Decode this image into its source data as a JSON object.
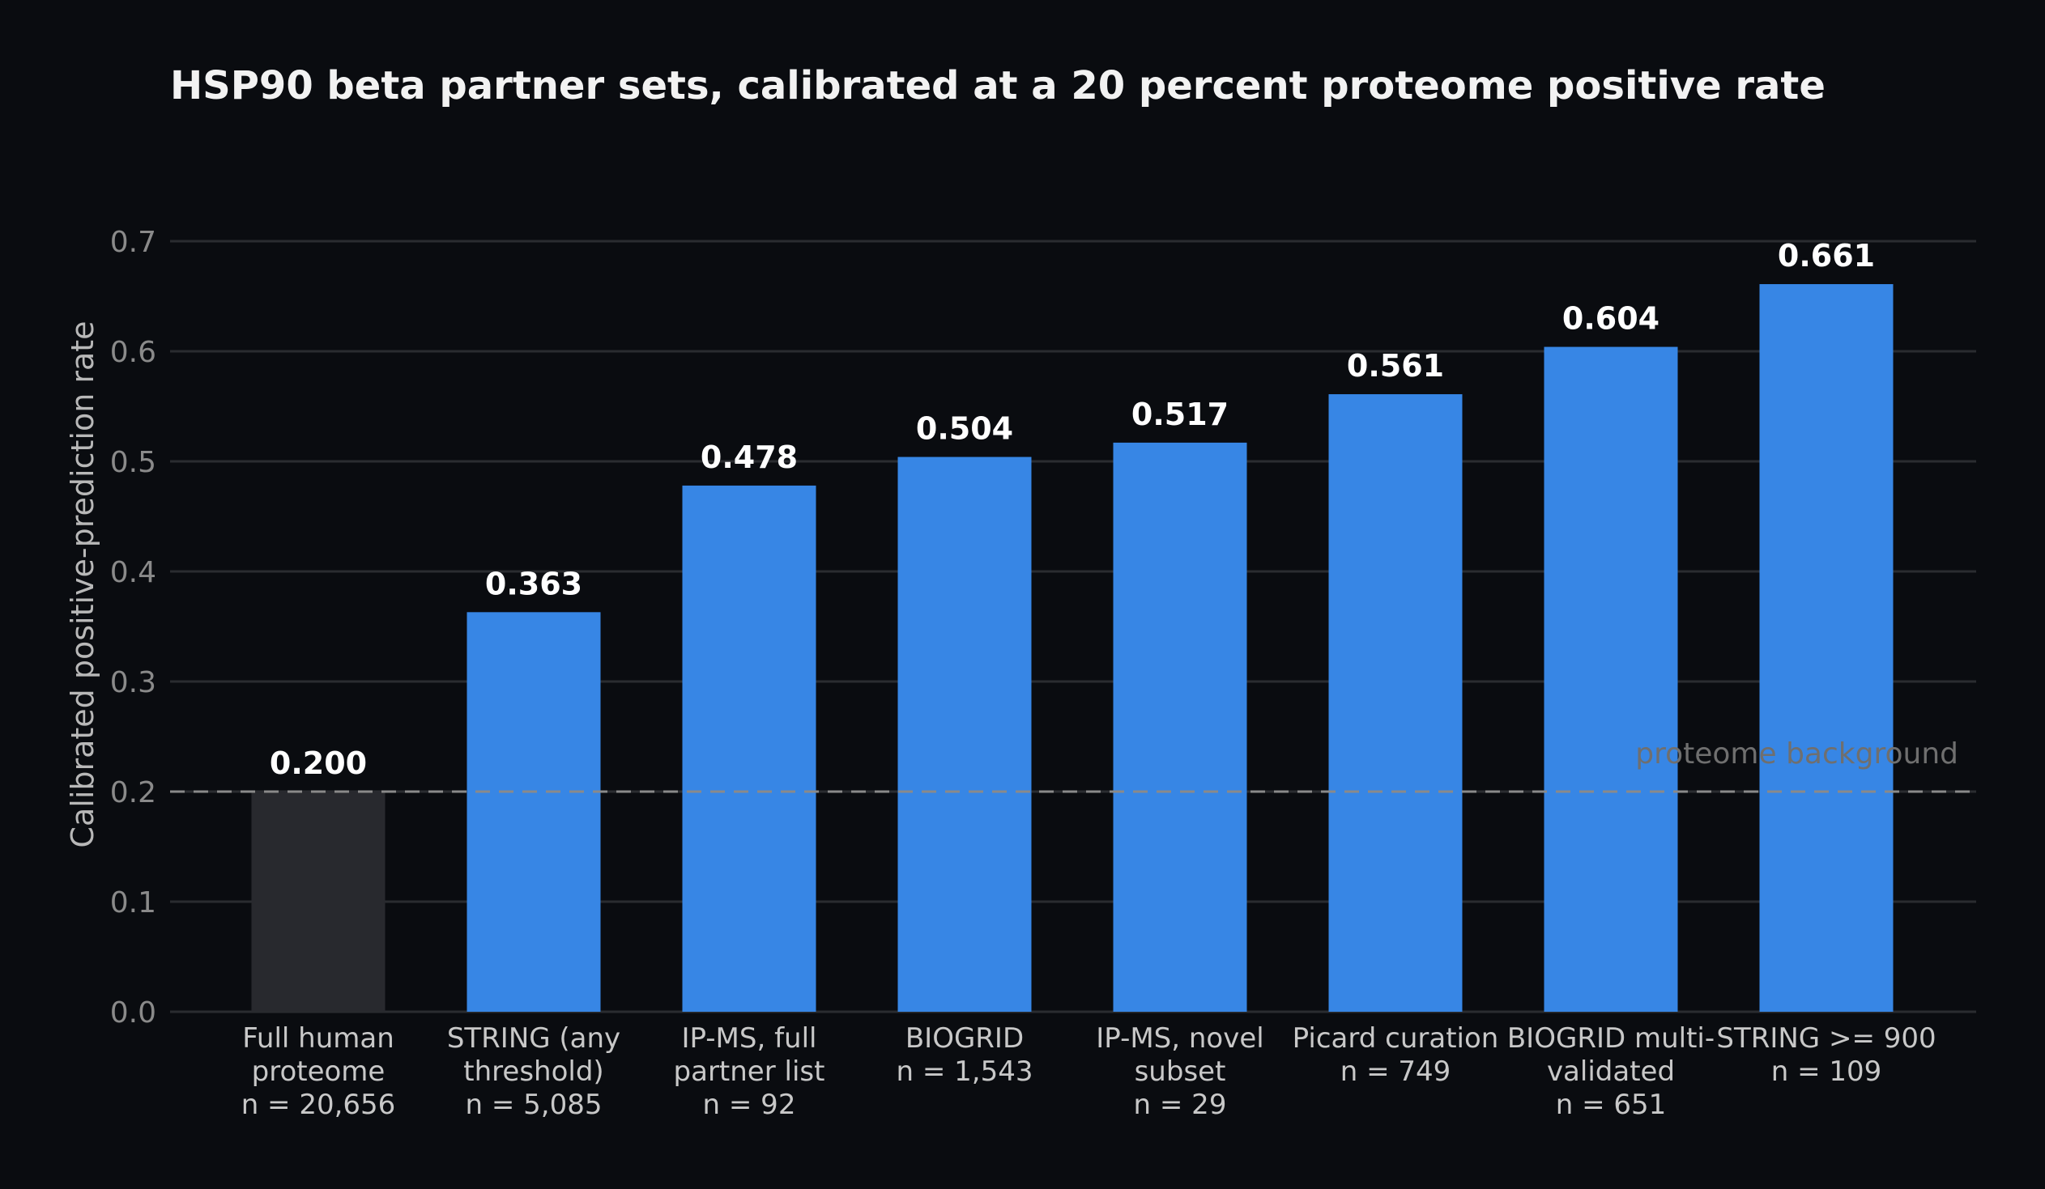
{
  "chart_data": {
    "type": "bar",
    "title": "HSP90 beta partner sets, calibrated at a 20 percent proteome positive rate",
    "xlabel": "",
    "ylabel": "Calibrated positive-prediction rate",
    "ylim": [
      0,
      0.7
    ],
    "yticks": [
      "0.0",
      "0.1",
      "0.2",
      "0.3",
      "0.4",
      "0.5",
      "0.6",
      "0.7"
    ],
    "grid": true,
    "categories": [
      [
        "Full human",
        "proteome",
        "n = 20,656"
      ],
      [
        "STRING (any",
        "threshold)",
        "n = 5,085"
      ],
      [
        "IP-MS, full",
        "partner list",
        "n = 92"
      ],
      [
        "BIOGRID",
        "n = 1,543"
      ],
      [
        "IP-MS, novel",
        "subset",
        "n = 29"
      ],
      [
        "Picard curation",
        "n = 749"
      ],
      [
        "BIOGRID multi-",
        "validated",
        "n = 651"
      ],
      [
        "STRING >= 900",
        "n = 109"
      ]
    ],
    "values": [
      0.2,
      0.363,
      0.478,
      0.504,
      0.517,
      0.561,
      0.604,
      0.661
    ],
    "value_labels": [
      "0.200",
      "0.363",
      "0.478",
      "0.504",
      "0.517",
      "0.561",
      "0.604",
      "0.661"
    ],
    "bar_colors": [
      "#28292e",
      "#3786e5",
      "#3786e5",
      "#3786e5",
      "#3786e5",
      "#3786e5",
      "#3786e5",
      "#3786e5"
    ],
    "reference_line": {
      "value": 0.2,
      "label": "proteome background",
      "color": "#8a8a8a",
      "style": "dashed"
    },
    "colors": {
      "background": "#0a0c10",
      "grid": "#2a2c30",
      "highlight_bar": "#3786e5",
      "baseline_bar": "#28292e"
    }
  }
}
